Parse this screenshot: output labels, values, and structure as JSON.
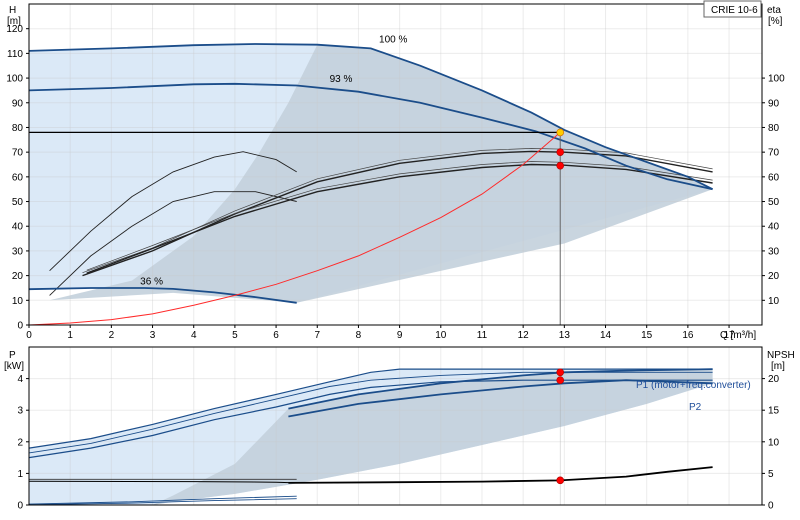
{
  "chart_data": {
    "type": "line",
    "pump_model": "CRIE 10-6",
    "colors": {
      "curve_blue": "#1b4d8a",
      "region_light": "#dbe9f7",
      "region_grey": "#c3d0dc",
      "system_curve": "#ff2a2a",
      "operating_point": "#ff0000",
      "duty_point": "#ffcc00",
      "grid": "#c8c8c8"
    },
    "x": {
      "label": "Q [m³/h]",
      "range": [
        0,
        17.8
      ],
      "ticks": [
        0,
        1,
        2,
        3,
        4,
        5,
        6,
        7,
        8,
        9,
        10,
        11,
        12,
        13,
        14,
        15,
        16,
        17
      ]
    },
    "duty_flow": 12.9,
    "upper_plot": {
      "y_left": {
        "label": "H",
        "unit": "[m]",
        "range": [
          0,
          130
        ],
        "ticks": [
          0,
          10,
          20,
          30,
          40,
          50,
          60,
          70,
          80,
          90,
          100,
          110,
          120
        ]
      },
      "y_right": {
        "label": "eta",
        "unit": "[%]",
        "range": [
          0,
          130
        ],
        "ticks": [
          10,
          20,
          30,
          40,
          50,
          60,
          70,
          80,
          90,
          100
        ]
      },
      "duty_head": 78,
      "head_curves": [
        {
          "label": "100 %",
          "points": [
            [
              0,
              111
            ],
            [
              2,
              112
            ],
            [
              4,
              113.3
            ],
            [
              5.5,
              113.8
            ],
            [
              7,
              113.5
            ],
            [
              8.3,
              112
            ],
            [
              9.5,
              105
            ],
            [
              11,
              95
            ],
            [
              12.2,
              86
            ],
            [
              13,
              79
            ],
            [
              14,
              72
            ],
            [
              15,
              66
            ],
            [
              16,
              60
            ],
            [
              16.6,
              55
            ]
          ]
        },
        {
          "label": "93 %",
          "points": [
            [
              0,
              95
            ],
            [
              2,
              96
            ],
            [
              4,
              97.5
            ],
            [
              5,
              97.7
            ],
            [
              6.5,
              97
            ],
            [
              8,
              94.5
            ],
            [
              9.5,
              90
            ],
            [
              11,
              84
            ],
            [
              12.3,
              78.5
            ],
            [
              13.5,
              71.5
            ],
            [
              14.5,
              64.5
            ],
            [
              15.5,
              59
            ],
            [
              16.6,
              55
            ]
          ]
        },
        {
          "label": "36 %",
          "points": [
            [
              0,
              14.5
            ],
            [
              1.5,
              15
            ],
            [
              2.8,
              15
            ],
            [
              3.5,
              14.6
            ],
            [
              4.5,
              13.2
            ],
            [
              5.5,
              11.3
            ],
            [
              6.5,
              9
            ]
          ]
        }
      ],
      "efficiency_curves": [
        {
          "points": [
            [
              0.5,
              12
            ],
            [
              1.5,
              28
            ],
            [
              2.5,
              40
            ],
            [
              3.5,
              50
            ],
            [
              4.5,
              54
            ],
            [
              5.5,
              54
            ],
            [
              6.5,
              50
            ]
          ]
        },
        {
          "points": [
            [
              0.5,
              22
            ],
            [
              1.5,
              38
            ],
            [
              2.5,
              52
            ],
            [
              3.5,
              62
            ],
            [
              4.5,
              68
            ],
            [
              5.2,
              70.2
            ],
            [
              6,
              67
            ],
            [
              6.5,
              62
            ]
          ]
        },
        {
          "points": [
            [
              1.3,
              20
            ],
            [
              3,
              30
            ],
            [
              5,
              45
            ],
            [
              7,
              58
            ],
            [
              9,
              65.5
            ],
            [
              11,
              69.5
            ],
            [
              12.2,
              70.3
            ],
            [
              13,
              70
            ],
            [
              14.5,
              68.5
            ],
            [
              16.6,
              62
            ]
          ]
        },
        {
          "points": [
            [
              1.4,
              21
            ],
            [
              3,
              31
            ],
            [
              5,
              44
            ],
            [
              7,
              54
            ],
            [
              9,
              60
            ],
            [
              11,
              63.8
            ],
            [
              12.2,
              65
            ],
            [
              13,
              64.7
            ],
            [
              14.5,
              63
            ],
            [
              16.6,
              57.5
            ]
          ]
        }
      ],
      "system_curve": {
        "points": [
          [
            0,
            0
          ],
          [
            1,
            0.8
          ],
          [
            2,
            2.2
          ],
          [
            3,
            4.5
          ],
          [
            4,
            8
          ],
          [
            5,
            12
          ],
          [
            6,
            16.5
          ],
          [
            7,
            22
          ],
          [
            8,
            28
          ],
          [
            9,
            35.5
          ],
          [
            10,
            43.5
          ],
          [
            11,
            53
          ],
          [
            12,
            65
          ],
          [
            12.9,
            78
          ]
        ]
      },
      "operating_points": [
        {
          "flow": 12.9,
          "value": 78,
          "kind": "duty"
        },
        {
          "flow": 12.9,
          "value": 70,
          "kind": "operating"
        },
        {
          "flow": 12.9,
          "value": 64.5,
          "kind": "operating"
        }
      ]
    },
    "lower_plot": {
      "y_left": {
        "label": "P",
        "unit": "[kW]",
        "range": [
          0,
          5
        ],
        "ticks": [
          0,
          1,
          2,
          3,
          4
        ]
      },
      "y_right": {
        "label": "NPSH",
        "unit": "[m]",
        "range": [
          0,
          25
        ],
        "ticks": [
          0,
          5,
          10,
          15,
          20
        ]
      },
      "series": [
        {
          "name": "P1 (motor+freq.converter)",
          "points": [
            [
              0,
              1.8
            ],
            [
              1.5,
              2.1
            ],
            [
              3,
              2.55
            ],
            [
              4.5,
              3.05
            ],
            [
              6,
              3.5
            ],
            [
              7.3,
              3.9
            ],
            [
              8.3,
              4.2
            ],
            [
              9,
              4.3
            ],
            [
              11,
              4.3
            ],
            [
              13,
              4.3
            ],
            [
              16.6,
              4.3
            ]
          ]
        },
        {
          "name": "P2",
          "points": [
            [
              0,
              1.5
            ],
            [
              1.5,
              1.8
            ],
            [
              3,
              2.2
            ],
            [
              4.5,
              2.7
            ],
            [
              6,
              3.1
            ],
            [
              7.3,
              3.5
            ],
            [
              8.3,
              3.72
            ],
            [
              10,
              3.9
            ],
            [
              12,
              3.95
            ],
            [
              13,
              3.95
            ],
            [
              16.6,
              3.95
            ]
          ]
        },
        {
          "points": [
            [
              0,
              1.65
            ],
            [
              1.5,
              1.95
            ],
            [
              3,
              2.4
            ],
            [
              4.5,
              2.9
            ],
            [
              6,
              3.35
            ],
            [
              7.3,
              3.75
            ],
            [
              8.3,
              3.95
            ],
            [
              10,
              4.1
            ],
            [
              12,
              4.2
            ],
            [
              13,
              4.2
            ],
            [
              16.6,
              4.2
            ]
          ]
        },
        {
          "points": [
            [
              6.3,
              3.05
            ],
            [
              8,
              3.5
            ],
            [
              10,
              3.85
            ],
            [
              12,
              4.1
            ],
            [
              13,
              4.2
            ],
            [
              14.5,
              4.25
            ],
            [
              16.6,
              4.3
            ]
          ]
        },
        {
          "points": [
            [
              6.3,
              2.8
            ],
            [
              8,
              3.2
            ],
            [
              10,
              3.5
            ],
            [
              12,
              3.75
            ],
            [
              13,
              3.85
            ],
            [
              14.5,
              3.95
            ],
            [
              16.6,
              3.85
            ]
          ]
        },
        {
          "points": [
            [
              0,
              0.03
            ],
            [
              2.5,
              0.1
            ],
            [
              4.5,
              0.2
            ],
            [
              6.5,
              0.28
            ]
          ]
        },
        {
          "points": [
            [
              0,
              0.01
            ],
            [
              2.5,
              0.06
            ],
            [
              4.5,
              0.14
            ],
            [
              6.5,
              0.2
            ]
          ]
        }
      ],
      "npsh_curves": [
        {
          "points": [
            [
              0,
              0.75
            ],
            [
              4,
              0.74
            ],
            [
              6,
              0.72
            ],
            [
              6.5,
              0.7
            ]
          ]
        },
        {
          "points": [
            [
              6.3,
              0.7
            ],
            [
              9,
              0.72
            ],
            [
              11,
              0.74
            ],
            [
              12.9,
              0.78
            ],
            [
              14.5,
              0.9
            ],
            [
              15.5,
              1.05
            ],
            [
              16.6,
              1.2
            ]
          ]
        }
      ],
      "operating_points": [
        {
          "flow": 12.9,
          "value": 4.2
        },
        {
          "flow": 12.9,
          "value": 3.95
        },
        {
          "flow": 12.9,
          "value": 0.78
        }
      ]
    }
  }
}
